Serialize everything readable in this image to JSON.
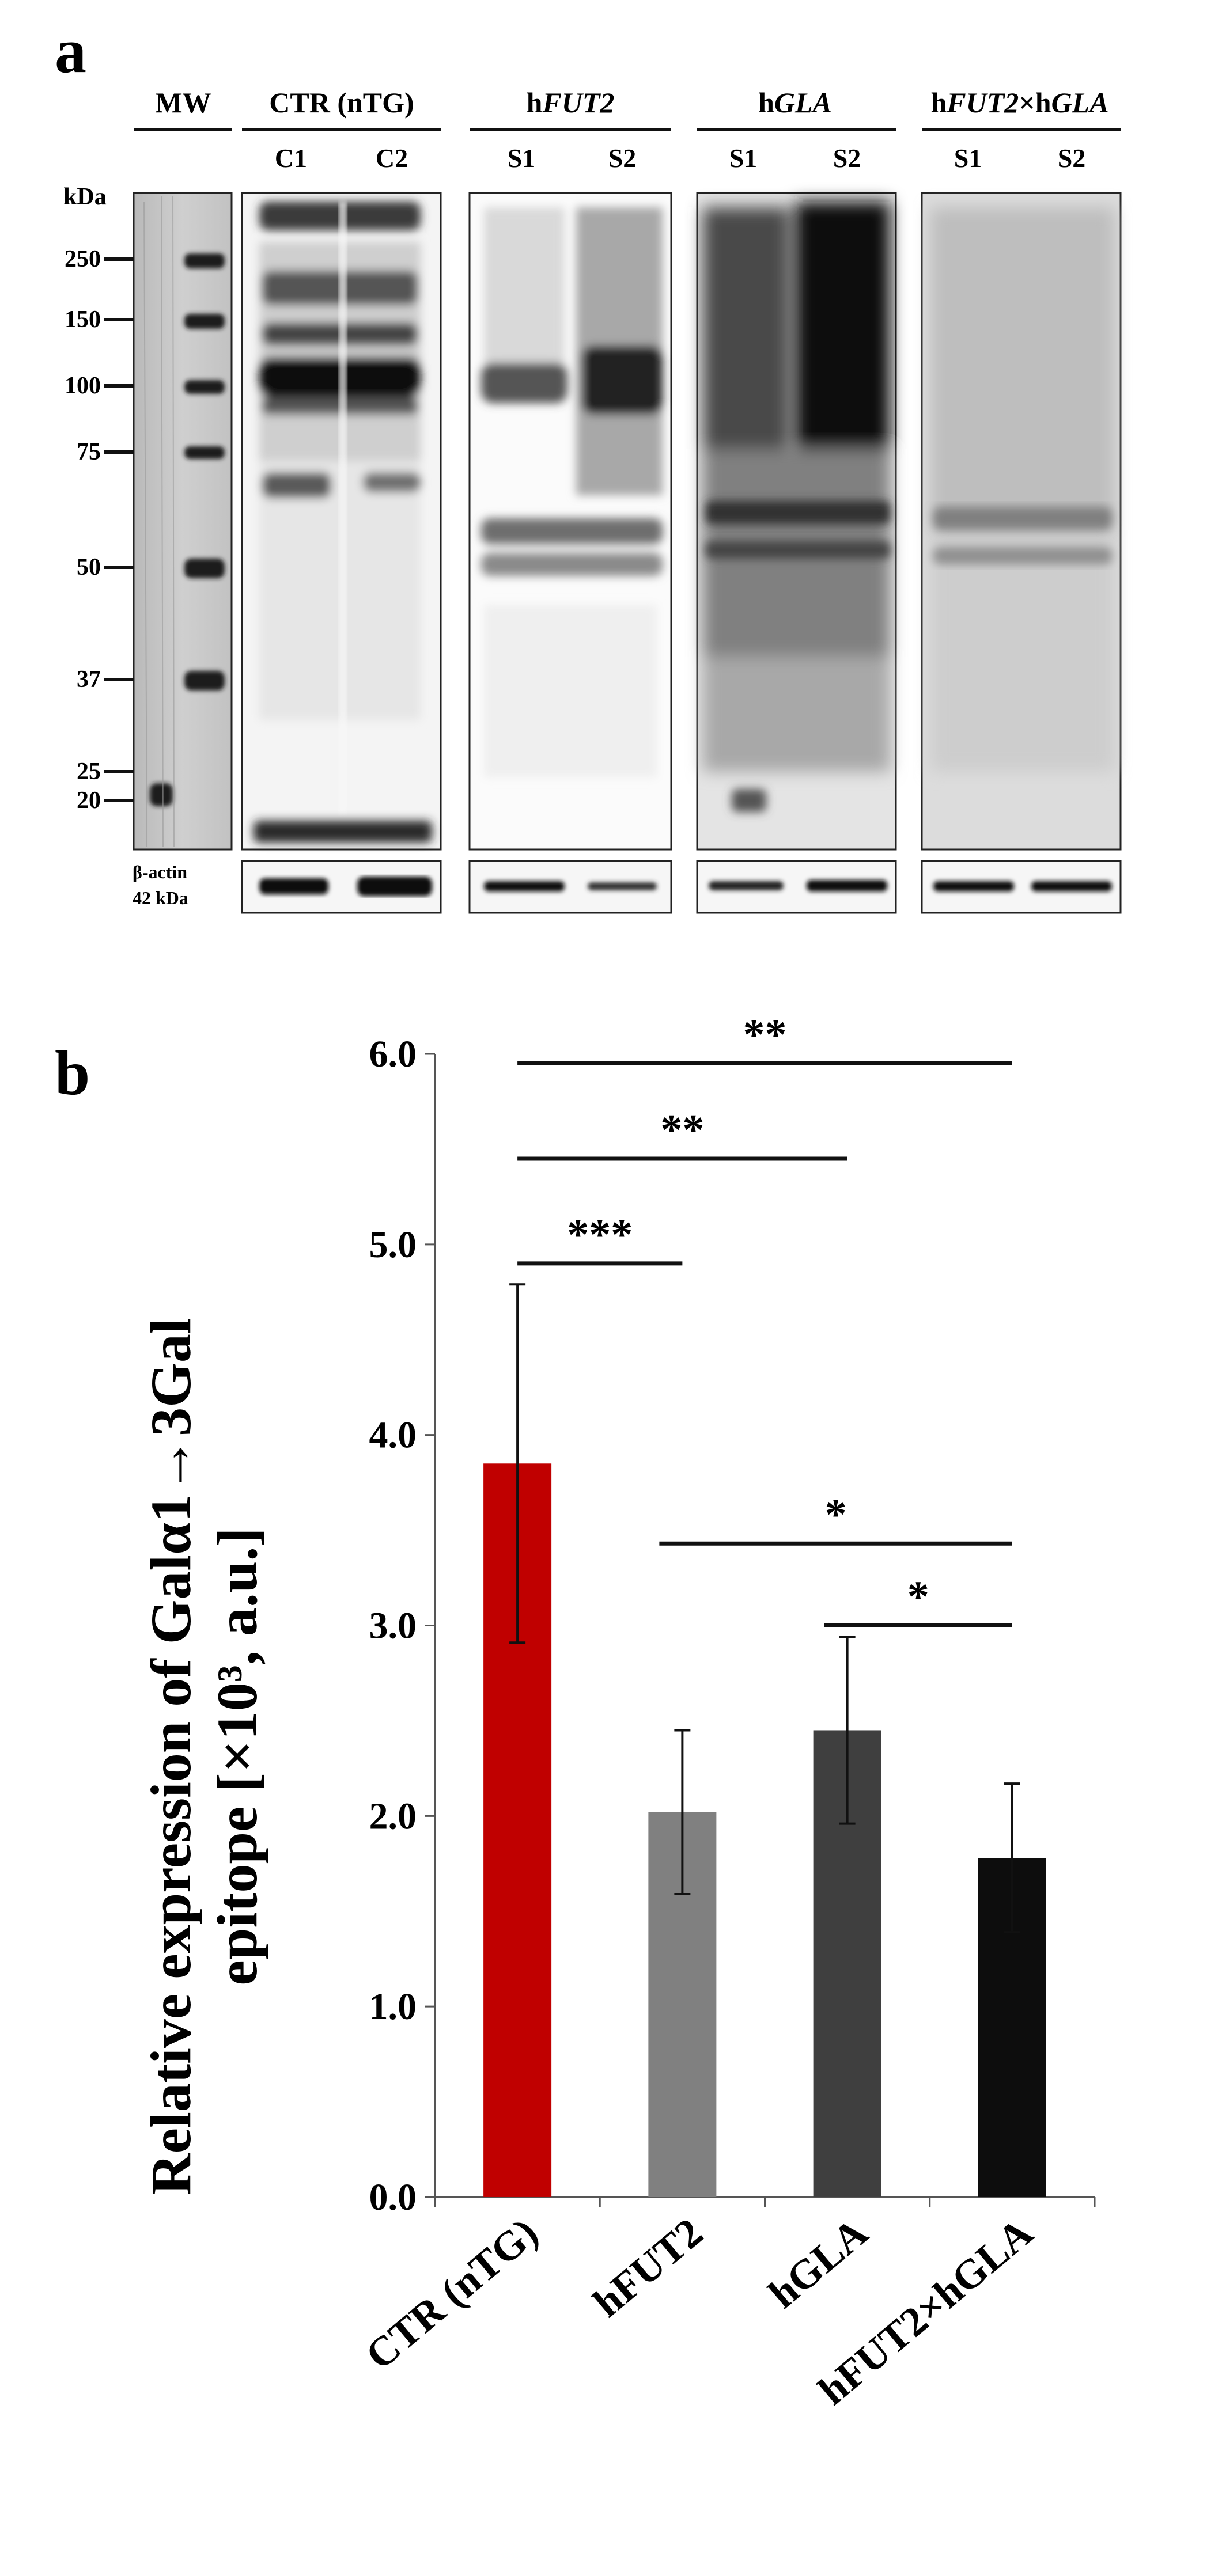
{
  "panel_a": {
    "letter": "a",
    "kda_label": "kDa",
    "groups": [
      {
        "name": "MW",
        "lanes": []
      },
      {
        "name": "CTR (nTG)",
        "lanes": [
          "C1",
          "C2"
        ]
      },
      {
        "name": "hFUT2",
        "lanes": [
          "S1",
          "S2"
        ],
        "italic_part": "FUT2"
      },
      {
        "name": "hGLA",
        "lanes": [
          "S1",
          "S2"
        ],
        "italic_part": "GLA"
      },
      {
        "name": "hFUT2×hGLA",
        "lanes": [
          "S1",
          "S2"
        ]
      }
    ],
    "mw_markers": [
      "250",
      "150",
      "100",
      "75",
      "50",
      "37",
      "25",
      "20"
    ],
    "actin_label_line1": "β-actin",
    "actin_label_line2": "42 kDa"
  },
  "chart_data": {
    "type": "bar",
    "panel_letter": "b",
    "categories": [
      "CTR (nTG)",
      "hFUT2",
      "hGLA",
      "hFUT2×hGLA"
    ],
    "values": [
      3.85,
      2.02,
      2.45,
      1.78
    ],
    "errors": [
      0.94,
      0.43,
      0.49,
      0.39
    ],
    "colors": [
      "#c00000",
      "#808080",
      "#3f3f3f",
      "#0d0d0d"
    ],
    "ylim": [
      0,
      6
    ],
    "yticks": [
      "0.0",
      "1.0",
      "2.0",
      "3.0",
      "4.0",
      "5.0",
      "6.0"
    ],
    "ylabel_line1": "Relative expression of Galα1→3Gal",
    "ylabel_line2": "epitope [×10³, a.u.]",
    "xlabel": "",
    "significance": [
      {
        "from": 0,
        "to": 3,
        "label": "**",
        "y": 5.95
      },
      {
        "from": 0,
        "to": 2,
        "label": "**",
        "y": 5.45
      },
      {
        "from": 0,
        "to": 1,
        "label": "***",
        "y": 4.9
      },
      {
        "from": 1,
        "to": 3,
        "label": "*",
        "y": 3.43
      },
      {
        "from": 2,
        "to": 3,
        "label": "*",
        "y": 3.0
      }
    ]
  }
}
